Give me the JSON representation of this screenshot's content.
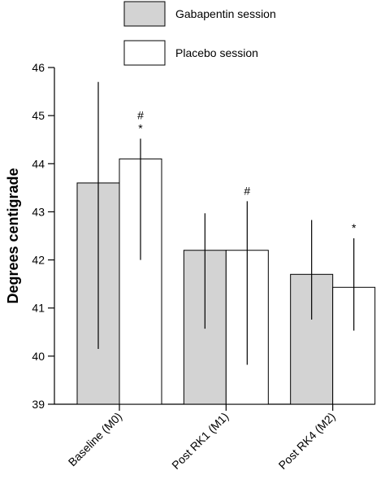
{
  "chart_data": {
    "type": "bar",
    "ylabel": "Degrees centigrade",
    "ylim": [
      39,
      46
    ],
    "yticks": [
      39,
      40,
      41,
      42,
      43,
      44,
      45,
      46
    ],
    "categories": [
      "Baseline (M0)",
      "Post RK1 (M1)",
      "Post RK4 (M2)"
    ],
    "series": [
      {
        "name": "Gabapentin session",
        "color": "#d3d3d3",
        "values": [
          43.6,
          42.2,
          41.7
        ],
        "error_low": [
          40.15,
          40.57,
          40.76
        ],
        "error_high": [
          45.7,
          42.97,
          42.83
        ],
        "annotations": [
          "",
          "",
          ""
        ]
      },
      {
        "name": "Placebo session",
        "color": "#ffffff",
        "values": [
          44.1,
          42.2,
          41.43
        ],
        "error_low": [
          42.0,
          39.82,
          40.53
        ],
        "error_high": [
          44.52,
          43.22,
          42.45
        ],
        "annotations": [
          "#\n*",
          "#",
          "*"
        ]
      }
    ],
    "grid": false,
    "legend": "top"
  }
}
